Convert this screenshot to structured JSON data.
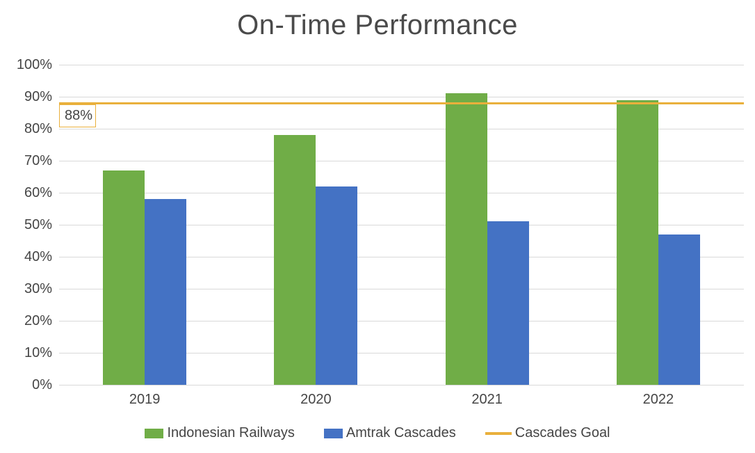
{
  "chart_data": {
    "type": "bar",
    "title": "On-Time Performance",
    "categories": [
      "2019",
      "2020",
      "2021",
      "2022"
    ],
    "series": [
      {
        "name": "Indonesian Railways",
        "color": "#70AD47",
        "values": [
          67,
          78,
          91,
          89
        ]
      },
      {
        "name": "Amtrak Cascades",
        "color": "#4472C4",
        "values": [
          58,
          62,
          51,
          47
        ]
      }
    ],
    "goal_line": {
      "name": "Cascades Goal",
      "value": 88,
      "label": "88%",
      "color": "#E9B03C"
    },
    "y_axis": {
      "min": 0,
      "max": 100,
      "step": 10,
      "tick_labels": [
        "0%",
        "10%",
        "20%",
        "30%",
        "40%",
        "50%",
        "60%",
        "70%",
        "80%",
        "90%",
        "100%"
      ]
    },
    "legend_position": "bottom",
    "grid": true,
    "colors": {
      "gridline": "#d9d9d9",
      "text": "#454545",
      "title_text": "#4a4a4a"
    }
  }
}
